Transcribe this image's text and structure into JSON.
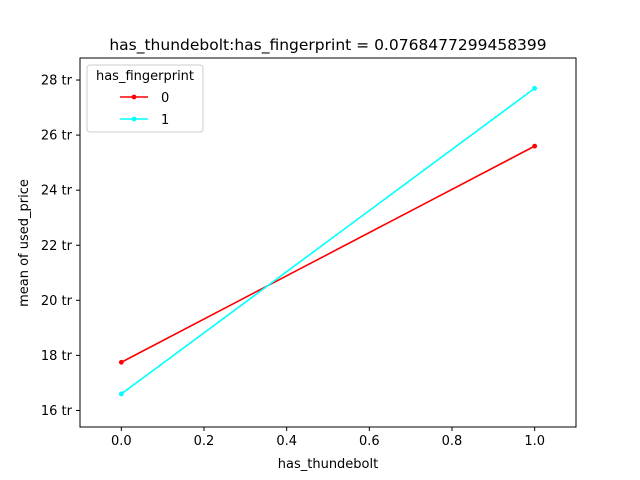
{
  "chart_data": {
    "type": "line",
    "title": "has_thundebolt:has_fingerprint = 0.0768477299458399",
    "xlabel": "has_thundebolt",
    "ylabel": "mean of used_price",
    "xlim": [
      -0.1,
      1.1
    ],
    "ylim": [
      15.4,
      28.8
    ],
    "x_ticks": [
      0.0,
      0.2,
      0.4,
      0.6,
      0.8,
      1.0
    ],
    "x_tick_labels": [
      "0.0",
      "0.2",
      "0.4",
      "0.6",
      "0.8",
      "1.0"
    ],
    "y_ticks": [
      16,
      18,
      20,
      22,
      24,
      26,
      28
    ],
    "y_tick_labels": [
      "16 tr",
      "18 tr",
      "20 tr",
      "22 tr",
      "24 tr",
      "26 tr",
      "28 tr"
    ],
    "grid": false,
    "legend": {
      "title": "has_fingerprint",
      "placement": "upper-left"
    },
    "series": [
      {
        "name": "0",
        "color": "#ff0000",
        "x": [
          0,
          1
        ],
        "y": [
          17.75,
          25.6
        ]
      },
      {
        "name": "1",
        "color": "#00ffff",
        "x": [
          0,
          1
        ],
        "y": [
          16.6,
          27.7
        ]
      }
    ]
  }
}
